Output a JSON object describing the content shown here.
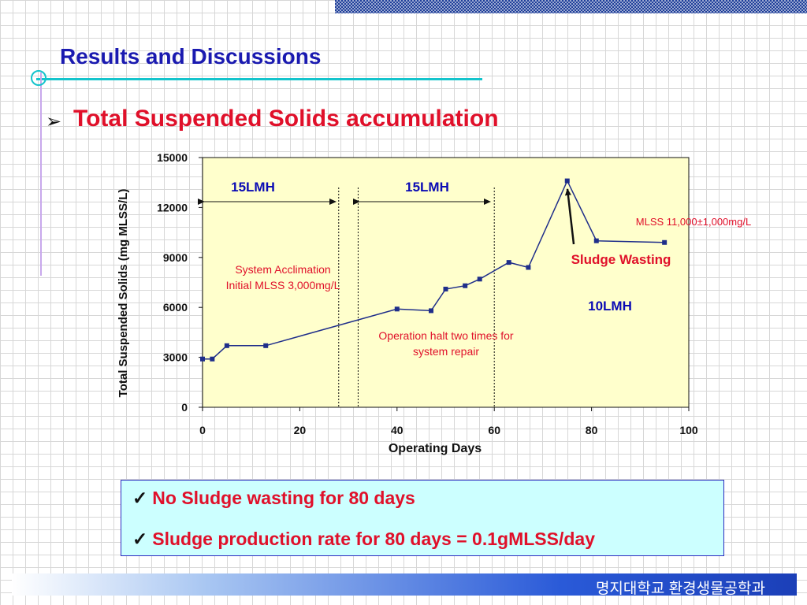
{
  "slide": {
    "title": "Results and Discussions",
    "section_heading": "Total Suspended Solids accumulation",
    "bullet_icon": "arrow-bullet-icon",
    "notes": [
      "No Sludge wasting for 80 days",
      "Sludge production rate for 80 days = 0.1gMLSS/day"
    ],
    "footer": "명지대학교 환경생물공학과"
  },
  "colors": {
    "title": "#1a1ab0",
    "heading": "#e0102a",
    "annotation_red": "#e0102a",
    "annotation_blue": "#0a0ab4",
    "plot_background": "#ffffcc",
    "series": "#1f2e8a",
    "note_background": "#ccffff"
  },
  "chart_data": {
    "type": "line",
    "xlabel": "Operating Days",
    "ylabel": "Total Suspended Solids (mg MLSS/L)",
    "xlim": [
      0,
      100
    ],
    "ylim": [
      0,
      15000
    ],
    "xticks": [
      0,
      20,
      40,
      60,
      80,
      100
    ],
    "yticks": [
      0,
      3000,
      6000,
      9000,
      12000,
      15000
    ],
    "grid": false,
    "series": [
      {
        "x": [
          0,
          2,
          5,
          13,
          40,
          47,
          50,
          54,
          57,
          63,
          67,
          75,
          81,
          95
        ],
        "y": [
          2900,
          2900,
          3700,
          3700,
          5900,
          5800,
          7100,
          7300,
          7700,
          8700,
          8400,
          13600,
          10000,
          9900
        ]
      }
    ],
    "period_dividers_x": [
      28,
      32,
      60
    ],
    "annotations": {
      "phase1_flux": "15LMH",
      "phase2_flux": "15LMH",
      "phase3_flux": "10LMH",
      "acclimation_line1": "System Acclimation",
      "acclimation_line2": "Initial MLSS 3,000mg/L",
      "halt_line1": "Operation halt two times for",
      "halt_line2": "system repair",
      "mlss_range": "MLSS 11,000±1,000mg/L",
      "sludge_wasting": "Sludge Wasting"
    }
  }
}
